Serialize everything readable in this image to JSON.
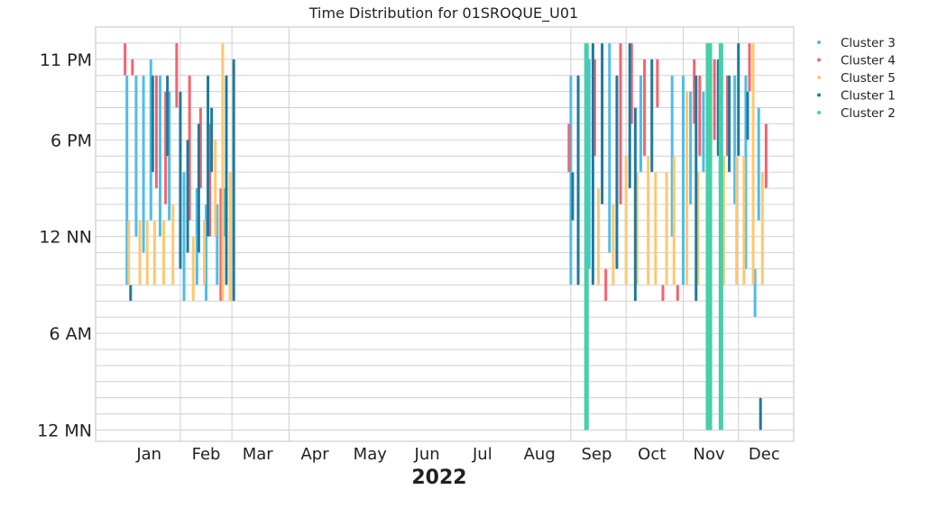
{
  "chart_data": {
    "type": "scatter",
    "title": "Time Distribution for 01SROQUE_U01",
    "xlabel": "2022",
    "ylabel": "",
    "x_ticks": [
      "Jan",
      "Feb",
      "Mar",
      "Apr",
      "May",
      "Jun",
      "Jul",
      "Aug",
      "Sep",
      "Oct",
      "Nov",
      "Dec"
    ],
    "x_tick_dates": [
      "2022-01-15",
      "2022-02-15",
      "2022-03-15",
      "2022-04-15",
      "2022-05-15",
      "2022-06-15",
      "2022-07-15",
      "2022-08-15",
      "2022-09-15",
      "2022-10-15",
      "2022-11-15",
      "2022-12-15"
    ],
    "x_gridlines": [
      "2022-02-01",
      "2022-03-01",
      "2022-04-01",
      "2022-09-01",
      "2022-10-01",
      "2022-11-01",
      "2022-12-01"
    ],
    "xlim": [
      "2021-12-17",
      "2022-12-31"
    ],
    "y_ticks": [
      {
        "label": "12 MN",
        "hour": 0
      },
      {
        "label": "6 AM",
        "hour": 6
      },
      {
        "label": "12 NN",
        "hour": 12
      },
      {
        "label": "6 PM",
        "hour": 18
      },
      {
        "label": "11 PM",
        "hour": 23
      }
    ],
    "ylim": [
      -0.7,
      25
    ],
    "y_gridline_hours": [
      0,
      1,
      2,
      3,
      4,
      5,
      6,
      7,
      8,
      9,
      10,
      11,
      12,
      13,
      14,
      15,
      16,
      17,
      18,
      19,
      20,
      21,
      22,
      23,
      24
    ],
    "legend_position": "outside-top-right",
    "series": [
      {
        "name": "Cluster 3",
        "color": "#4dbde8",
        "bars": [
          [
            "2022-01-03",
            9,
            22
          ],
          [
            "2022-01-08",
            12,
            22
          ],
          [
            "2022-01-12",
            11,
            22
          ],
          [
            "2022-01-16",
            13,
            23
          ],
          [
            "2022-01-21",
            12,
            22
          ],
          [
            "2022-01-26",
            13,
            21
          ],
          [
            "2022-02-03",
            8,
            16
          ],
          [
            "2022-02-10",
            9,
            15
          ],
          [
            "2022-02-15",
            8,
            14
          ],
          [
            "2022-02-21",
            9,
            14
          ],
          [
            "2022-02-25",
            12,
            15
          ],
          [
            "2022-09-01",
            9,
            22
          ],
          [
            "2022-09-11",
            10,
            23
          ],
          [
            "2022-09-22",
            11,
            24
          ],
          [
            "2022-10-09",
            16,
            22
          ],
          [
            "2022-10-26",
            12,
            22
          ],
          [
            "2022-11-01",
            9,
            22
          ],
          [
            "2022-11-05",
            14,
            21
          ],
          [
            "2022-11-12",
            16,
            21
          ],
          [
            "2022-11-21",
            15,
            20
          ],
          [
            "2022-11-29",
            14,
            22
          ],
          [
            "2022-12-05",
            10,
            22
          ],
          [
            "2022-12-10",
            7,
            10
          ],
          [
            "2022-12-12",
            13,
            20
          ]
        ]
      },
      {
        "name": "Cluster 4",
        "color": "#f5636d",
        "bars": [
          [
            "2022-01-02",
            22,
            24
          ],
          [
            "2022-01-06",
            22,
            23
          ],
          [
            "2022-01-19",
            15,
            22
          ],
          [
            "2022-01-24",
            14,
            21
          ],
          [
            "2022-01-30",
            20,
            24
          ],
          [
            "2022-02-06",
            13,
            22
          ],
          [
            "2022-02-12",
            15,
            20
          ],
          [
            "2022-02-17",
            12,
            19
          ],
          [
            "2022-02-23",
            8,
            15
          ],
          [
            "2022-08-31",
            16,
            19
          ],
          [
            "2022-09-14",
            17,
            23
          ],
          [
            "2022-09-20",
            8,
            10
          ],
          [
            "2022-09-28",
            14,
            24
          ],
          [
            "2022-10-04",
            19,
            24
          ],
          [
            "2022-10-11",
            17,
            23
          ],
          [
            "2022-10-18",
            20,
            23
          ],
          [
            "2022-10-21",
            8,
            9
          ],
          [
            "2022-10-29",
            8,
            9
          ],
          [
            "2022-11-07",
            19,
            23
          ],
          [
            "2022-11-10",
            17,
            22
          ],
          [
            "2022-11-18",
            18,
            23
          ],
          [
            "2022-11-25",
            17,
            22
          ],
          [
            "2022-12-07",
            21,
            24
          ],
          [
            "2022-12-16",
            15,
            19
          ]
        ]
      },
      {
        "name": "Cluster 5",
        "color": "#fec86f",
        "bars": [
          [
            "2022-01-04",
            9,
            13
          ],
          [
            "2022-01-10",
            9,
            13
          ],
          [
            "2022-01-14",
            9,
            13
          ],
          [
            "2022-01-18",
            9,
            13
          ],
          [
            "2022-01-23",
            9,
            13
          ],
          [
            "2022-01-28",
            9,
            14
          ],
          [
            "2022-02-08",
            8,
            12
          ],
          [
            "2022-02-14",
            9,
            13
          ],
          [
            "2022-02-20",
            12,
            18
          ],
          [
            "2022-02-24",
            8,
            24
          ],
          [
            "2022-02-28",
            8,
            16
          ],
          [
            "2022-09-16",
            9,
            15
          ],
          [
            "2022-09-24",
            9,
            14
          ],
          [
            "2022-10-01",
            9,
            17
          ],
          [
            "2022-10-07",
            9,
            16
          ],
          [
            "2022-10-13",
            9,
            17
          ],
          [
            "2022-10-17",
            9,
            16
          ],
          [
            "2022-10-23",
            9,
            16
          ],
          [
            "2022-10-27",
            9,
            17
          ],
          [
            "2022-11-03",
            9,
            21
          ],
          [
            "2022-11-09",
            9,
            16
          ],
          [
            "2022-11-15",
            9,
            17
          ],
          [
            "2022-11-23",
            9,
            17
          ],
          [
            "2022-11-30",
            9,
            17
          ],
          [
            "2022-12-04",
            9,
            17
          ],
          [
            "2022-12-09",
            9,
            24
          ],
          [
            "2022-12-14",
            9,
            16
          ]
        ]
      },
      {
        "name": "Cluster 1",
        "color": "#1f7a9c",
        "bars": [
          [
            "2022-01-05",
            8,
            9
          ],
          [
            "2022-01-17",
            16,
            22
          ],
          [
            "2022-01-25",
            17,
            22
          ],
          [
            "2022-02-01",
            10,
            21
          ],
          [
            "2022-02-05",
            11,
            18
          ],
          [
            "2022-02-11",
            11,
            19
          ],
          [
            "2022-02-16",
            12,
            22
          ],
          [
            "2022-02-18",
            16,
            20
          ],
          [
            "2022-02-26",
            9,
            22
          ],
          [
            "2022-03-02",
            8,
            23
          ],
          [
            "2022-09-02",
            13,
            16
          ],
          [
            "2022-09-05",
            9,
            22
          ],
          [
            "2022-09-13",
            9,
            24
          ],
          [
            "2022-09-18",
            14,
            24
          ],
          [
            "2022-09-26",
            10,
            22
          ],
          [
            "2022-10-03",
            15,
            24
          ],
          [
            "2022-10-06",
            8,
            20
          ],
          [
            "2022-10-15",
            16,
            23
          ],
          [
            "2022-11-08",
            8,
            22
          ],
          [
            "2022-11-14",
            17,
            24
          ],
          [
            "2022-11-20",
            17,
            23
          ],
          [
            "2022-11-26",
            16,
            22
          ],
          [
            "2022-12-01",
            17,
            24
          ],
          [
            "2022-12-06",
            18,
            21
          ],
          [
            "2022-12-13",
            0,
            2
          ]
        ]
      },
      {
        "name": "Cluster 2",
        "color": "#46cfa9",
        "bars": [
          [
            "2022-09-09",
            0,
            24
          ],
          [
            "2022-09-10",
            0,
            24
          ],
          [
            "2022-11-14",
            0,
            24
          ],
          [
            "2022-11-15",
            0,
            24
          ],
          [
            "2022-11-16",
            0,
            24
          ],
          [
            "2022-11-21",
            0,
            24
          ],
          [
            "2022-11-22",
            0,
            24
          ]
        ]
      }
    ]
  }
}
